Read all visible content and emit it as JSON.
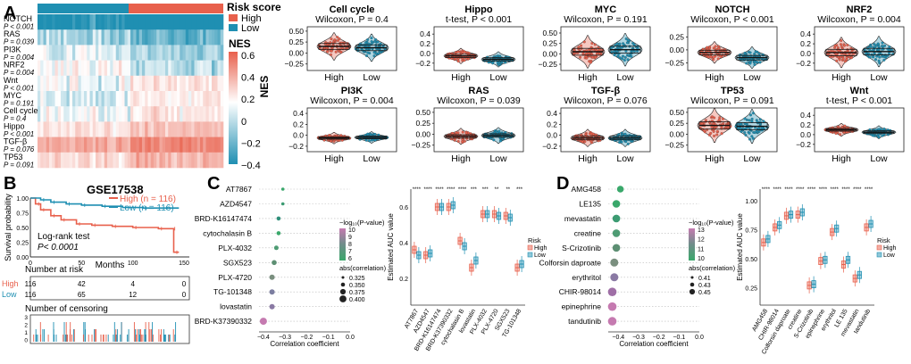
{
  "panels": {
    "A": "A",
    "B": "B",
    "C": "C",
    "D": "D"
  },
  "heatmap": {
    "legend_title": "Risk score",
    "legend_items": [
      {
        "label": "High",
        "color": "#e8604c"
      },
      {
        "label": "Low",
        "color": "#1f8fb2"
      }
    ],
    "nes_title": "NES",
    "nes_ticks": [
      "0.6",
      "0.4",
      "0.2",
      "0",
      "−0.2",
      "−0.4"
    ],
    "rows": [
      {
        "name": "NOTCH",
        "p": "P < 0.001"
      },
      {
        "name": "RAS",
        "p": "P = 0.039"
      },
      {
        "name": "PI3K",
        "p": "P = 0.004"
      },
      {
        "name": "NRF2",
        "p": "P = 0.004"
      },
      {
        "name": "Wnt",
        "p": "P < 0.001"
      },
      {
        "name": "MYC",
        "p": "P = 0.191"
      },
      {
        "name": "Cell cycle",
        "p": "P = 0.4"
      },
      {
        "name": "Hippo",
        "p": "P < 0.001"
      },
      {
        "name": "TGF-β",
        "p": "P = 0.076"
      },
      {
        "name": "TP53",
        "p": "P = 0.091"
      }
    ],
    "row_intensity": [
      -0.45,
      -0.2,
      -0.1,
      -0.05,
      0.05,
      0,
      0.05,
      0.15,
      0.35,
      0.2
    ]
  },
  "violins": {
    "y_axis_label": "NES",
    "groups": [
      "High",
      "Low"
    ],
    "colors": {
      "high": "#e8604c",
      "low": "#1f8fb2"
    },
    "plots": [
      {
        "title": "Cell cycle",
        "test": "Wilcoxon, P = 0.4",
        "ticks": [
          "0.50",
          "0.25",
          "0.00",
          "−0.25"
        ],
        "ymin": -0.4,
        "ymax": 0.6,
        "high_mean": 0.15,
        "low_mean": 0.12,
        "spread": 0.12
      },
      {
        "title": "Hippo",
        "test": "t-test, P < 0.001",
        "ticks": [
          "0.4",
          "0.2",
          "0.0",
          "−0.2"
        ],
        "ymin": -0.35,
        "ymax": 0.55,
        "high_mean": -0.05,
        "low_mean": -0.12,
        "spread": 0.06
      },
      {
        "title": "MYC",
        "test": "Wilcoxon, P = 0.191",
        "ticks": [
          "0.50",
          "0.25",
          "0.00",
          "−0.25"
        ],
        "ymin": -0.4,
        "ymax": 0.65,
        "high_mean": 0.05,
        "low_mean": 0.1,
        "spread": 0.15
      },
      {
        "title": "NOTCH",
        "test": "Wilcoxon, P < 0.001",
        "ticks": [
          "0.25",
          "0.00",
          "−0.25"
        ],
        "ymin": -0.4,
        "ymax": 0.45,
        "high_mean": -0.05,
        "low_mean": -0.15,
        "spread": 0.08
      },
      {
        "title": "NRF2",
        "test": "Wilcoxon, P = 0.004",
        "ticks": [
          "0.4",
          "0.2",
          "0.0",
          "−0.2"
        ],
        "ymin": -0.35,
        "ymax": 0.55,
        "high_mean": 0.02,
        "low_mean": 0.04,
        "spread": 0.12
      },
      {
        "title": "PI3K",
        "test": "Wilcoxon, P = 0.004",
        "ticks": [
          "0.4",
          "0.2",
          "0.0",
          "−0.2"
        ],
        "ymin": -0.3,
        "ymax": 0.5,
        "high_mean": -0.05,
        "low_mean": -0.04,
        "spread": 0.04
      },
      {
        "title": "RAS",
        "test": "Wilcoxon, P = 0.039",
        "ticks": [
          "0.50",
          "0.25",
          "0.00",
          "−0.25"
        ],
        "ymin": -0.4,
        "ymax": 0.6,
        "high_mean": -0.05,
        "low_mean": -0.03,
        "spread": 0.07
      },
      {
        "title": "TGF-β",
        "test": "Wilcoxon, P = 0.076",
        "ticks": [
          "0.4",
          "0.2",
          "0.0",
          "−0.2"
        ],
        "ymin": -0.3,
        "ymax": 0.5,
        "high_mean": -0.05,
        "low_mean": -0.05,
        "spread": 0.06
      },
      {
        "title": "TP53",
        "test": "Wilcoxon, P = 0.091",
        "ticks": [
          "0.50",
          "0.25",
          "0.00",
          "−0.25"
        ],
        "ymin": -0.4,
        "ymax": 0.6,
        "high_mean": 0.2,
        "low_mean": 0.18,
        "spread": 0.15
      },
      {
        "title": "Wnt",
        "test": "t-test, P < 0.001",
        "ticks": [
          "0.4",
          "0.2",
          "0.0",
          "−0.2"
        ],
        "ymin": -0.35,
        "ymax": 0.55,
        "high_mean": 0.1,
        "low_mean": 0.05,
        "spread": 0.05
      }
    ]
  },
  "km": {
    "title": "GSE17538",
    "ylabel": "Survival probability",
    "xlabel": "Months",
    "yticks": [
      "1.00",
      "0.75",
      "0.50",
      "0.25",
      "0.00"
    ],
    "xticks": [
      "0",
      "50",
      "100",
      "150"
    ],
    "legend": [
      {
        "label": "High (n = 116)",
        "color": "#e8604c"
      },
      {
        "label": "Low (n = 116)",
        "color": "#1f8fb2"
      }
    ],
    "test_label": "Log-rank test",
    "p_label": "P< 0.0001",
    "risk_title": "Number at risk",
    "risk_rows": [
      {
        "label": "High",
        "color": "#e8604c",
        "values": [
          "116",
          "42",
          "4",
          "0"
        ]
      },
      {
        "label": "Low",
        "color": "#1f8fb2",
        "values": [
          "116",
          "65",
          "12",
          "0"
        ]
      }
    ],
    "censor_title": "Number of censoring",
    "censor_yticks": [
      "3",
      "2",
      "1",
      "0"
    ],
    "high_curve": [
      [
        0,
        1.0
      ],
      [
        5,
        0.9
      ],
      [
        10,
        0.8
      ],
      [
        20,
        0.7
      ],
      [
        30,
        0.63
      ],
      [
        45,
        0.56
      ],
      [
        60,
        0.54
      ],
      [
        80,
        0.52
      ],
      [
        100,
        0.5
      ],
      [
        125,
        0.48
      ],
      [
        138,
        0.48
      ],
      [
        140,
        0.08
      ],
      [
        145,
        0.08
      ]
    ],
    "low_curve": [
      [
        0,
        1.0
      ],
      [
        10,
        0.97
      ],
      [
        20,
        0.93
      ],
      [
        35,
        0.9
      ],
      [
        50,
        0.88
      ],
      [
        70,
        0.86
      ],
      [
        90,
        0.84
      ],
      [
        110,
        0.83
      ],
      [
        130,
        0.83
      ],
      [
        145,
        0.83
      ]
    ]
  },
  "drugC": {
    "drugs": [
      "AT7867",
      "AZD4547",
      "BRD-K16147474",
      "cytochalasin B",
      "PLX-4032",
      "SGX523",
      "PLX-4720",
      "TG-101348",
      "lovastatin",
      "BRD-K37390332"
    ],
    "correlations": [
      -0.31,
      -0.31,
      -0.33,
      -0.33,
      -0.34,
      -0.35,
      -0.36,
      -0.36,
      -0.36,
      -0.4
    ],
    "dot_colors": [
      "#3aa86b",
      "#3c9b72",
      "#2f8f7a",
      "#3aa86b",
      "#4e9c74",
      "#5d8f73",
      "#7a8f7f",
      "#7c7ea0",
      "#8a7aa4",
      "#c57ab0"
    ],
    "x_ticks": [
      "−0.4",
      "−0.3",
      "−0.2",
      "−0.1",
      "0.0"
    ],
    "xlim": [
      -0.42,
      0.0
    ],
    "x_label": "Correlation coefficient",
    "legend_p_title": "−log₁₀(P-value)",
    "legend_p_ticks": [
      "10",
      "9",
      "8",
      "7",
      "6"
    ],
    "legend_size_title": "abs(correlation)",
    "legend_size_items": [
      "0.325",
      "0.350",
      "0.375",
      "0.400"
    ],
    "box_ylabel": "Estimated AUC value",
    "box_ticks": [
      "0.6",
      "0.4",
      "0.2"
    ],
    "box_ylim": [
      0.05,
      0.7
    ],
    "box_high": [
      0.36,
      0.33,
      0.6,
      0.6,
      0.41,
      0.26,
      0.56,
      0.56,
      0.55,
      0.26
    ],
    "box_low": [
      0.33,
      0.34,
      0.6,
      0.61,
      0.38,
      0.3,
      0.56,
      0.55,
      0.54,
      0.28
    ],
    "box_sig": [
      "****",
      "****",
      "****",
      "****",
      "****",
      "***",
      "***",
      "**",
      "**",
      "***"
    ],
    "box_xlabels": [
      "AT7867",
      "AZD4547",
      "BRD-K16147474",
      "BRD-K37390332",
      "cytochalasin B",
      "lovastatin",
      "PLX-4032",
      "PLX-4720",
      "SGX523",
      "TG-101348"
    ],
    "risk_legend_title": "Risk",
    "risk_legend": [
      "High",
      "Low"
    ]
  },
  "drugD": {
    "drugs": [
      "AMG458",
      "LE135",
      "mevastatin",
      "creatine",
      "S-Crizotinib",
      "Colforsin daproate",
      "erythritol",
      "CHIR-98014",
      "epinephrine",
      "tandutinib"
    ],
    "correlations": [
      -0.39,
      -0.41,
      -0.41,
      -0.41,
      -0.41,
      -0.42,
      -0.42,
      -0.43,
      -0.43,
      -0.43
    ],
    "dot_colors": [
      "#3aa86b",
      "#3aa86b",
      "#3c9b72",
      "#4e9c74",
      "#5d8f73",
      "#7a8f7f",
      "#8a7aa4",
      "#9f6fa6",
      "#c57ab0",
      "#c57ab0"
    ],
    "x_ticks": [
      "−0.4",
      "−0.3",
      "−0.2",
      "−0.1",
      "0.0"
    ],
    "xlim": [
      -0.45,
      0.0
    ],
    "x_label": "Correlation coefficient",
    "legend_p_title": "−log₁₀(P-value)",
    "legend_p_ticks": [
      "13",
      "12",
      "11",
      "10"
    ],
    "legend_size_title": "abs(correlation)",
    "legend_size_items": [
      "0.41",
      "0.43",
      "0.45"
    ],
    "box_ylabel": "Estimated AUC value",
    "box_ticks": [
      "1.00",
      "0.75",
      "0.50",
      "0.25"
    ],
    "box_ylim": [
      0.1,
      1.1
    ],
    "box_high": [
      0.64,
      0.77,
      0.87,
      0.88,
      0.27,
      0.48,
      0.73,
      0.45,
      0.33,
      0.77
    ],
    "box_low": [
      0.67,
      0.79,
      0.88,
      0.9,
      0.28,
      0.49,
      0.76,
      0.49,
      0.36,
      0.8
    ],
    "box_sig": [
      "****",
      "****",
      "****",
      "****",
      "****",
      "****",
      "****",
      "****",
      "****",
      "****"
    ],
    "box_xlabels": [
      "AMG458",
      "CHIR-98014",
      "Colforsin daproate",
      "creatine",
      "S-Crizotinib",
      "epinephrine",
      "erythritol",
      "LE 135",
      "mevastatin",
      "tandutinib"
    ],
    "risk_legend_title": "Risk",
    "risk_legend": [
      "High",
      "Low"
    ]
  }
}
